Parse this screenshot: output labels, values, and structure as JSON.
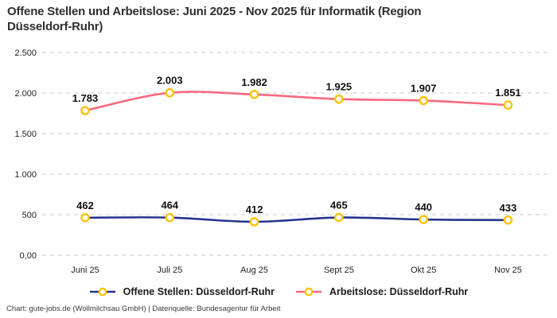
{
  "title": "Offene Stellen und Arbeitslose: Juni 2025 - Nov 2025 für Informatik (Region Düsseldorf-Ruhr)",
  "footer": "Chart: gute-jobs.de (Wollmilchsau GmbH) | Datenquelle: Bundesagentur für Arbeit",
  "colors": {
    "offene_stellen_line": "#26348C",
    "arbeitslose_line": "#F7697F",
    "marker_ring": "#FFC20A",
    "marker_fill": "#FFFFFF",
    "gridline": "#CBCBCB",
    "axis_text": "#1f1f1f",
    "data_label_text": "#101010"
  },
  "chart_data": {
    "type": "line",
    "title": "Offene Stellen und Arbeitslose: Juni 2025 - Nov 2025 für Informatik (Region Düsseldorf-Ruhr)",
    "categories": [
      "Juni 25",
      "Juli 25",
      "Aug 25",
      "Sept 25",
      "Okt 25",
      "Nov 25"
    ],
    "series": [
      {
        "name": "Offene Stellen: Düsseldorf-Ruhr",
        "values": [
          462,
          464,
          412,
          465,
          440,
          433
        ],
        "labels": [
          "462",
          "464",
          "412",
          "465",
          "440",
          "433"
        ],
        "color_key": "offene_stellen_line"
      },
      {
        "name": "Arbeitslose: Düsseldorf-Ruhr",
        "values": [
          1783,
          2003,
          1982,
          1925,
          1907,
          1851
        ],
        "labels": [
          "1.783",
          "2.003",
          "1.982",
          "1.925",
          "1.907",
          "1.851"
        ],
        "color_key": "arbeitslose_line"
      }
    ],
    "y_ticks": [
      {
        "value": 0,
        "label": "0,00"
      },
      {
        "value": 500,
        "label": "500"
      },
      {
        "value": 1000,
        "label": "1.000"
      },
      {
        "value": 1500,
        "label": "1.500"
      },
      {
        "value": 2000,
        "label": "2.000"
      },
      {
        "value": 2500,
        "label": "2.500"
      }
    ],
    "ylim": [
      0,
      2500
    ],
    "xlabel": "",
    "ylabel": "",
    "grid": "horizontal-dashed",
    "legend_position": "bottom"
  }
}
